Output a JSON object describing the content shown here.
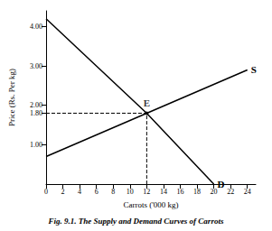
{
  "chart_data": {
    "type": "line",
    "title": "Fig. 9.1. The Supply and Demand Curves of Carrots",
    "x_label": "Carrots ('000 kg)",
    "y_label": "Price (Rs. Per kg)",
    "series": [
      {
        "name": "S",
        "color": "#000000",
        "x": [
          0,
          12,
          24
        ],
        "values": [
          0.7,
          1.8,
          2.9
        ]
      },
      {
        "name": "D",
        "color": "#000000",
        "x": [
          0,
          12,
          20
        ],
        "values": [
          4.2,
          1.8,
          0
        ]
      }
    ],
    "annotations": [
      {
        "text": "E",
        "x": 12,
        "y": 1.8
      }
    ],
    "xlim": [
      0,
      25
    ],
    "xticks": [
      0,
      2,
      4,
      6,
      8,
      10,
      12,
      14,
      16,
      18,
      20,
      22,
      24
    ],
    "ylim": [
      0,
      4.4
    ],
    "yticks": [
      {
        "value": 1,
        "label": "1.00"
      },
      {
        "value": 1.8,
        "label": "1.80"
      },
      {
        "value": 2,
        "label": "2.00"
      },
      {
        "value": 3,
        "label": "3.00"
      },
      {
        "value": 4,
        "label": "4.00"
      }
    ],
    "grid": false
  }
}
